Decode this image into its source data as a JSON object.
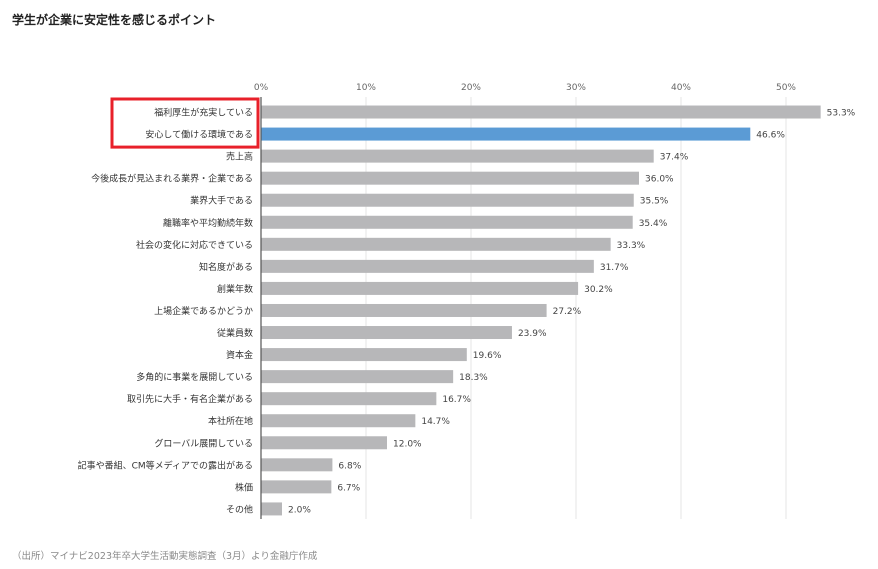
{
  "title": "学生が企業に安定性を感じるポイント",
  "source": "（出所）マイナビ2023年卒大学生活動実態調査（3月）より金融庁作成",
  "colors": {
    "bar": "#b7b7b9",
    "highlight_bar": "#5b9bd5",
    "highlight_box": "#e8202a",
    "grid": "#e6e6e6",
    "axis": "#555555"
  },
  "chart_data": {
    "type": "bar",
    "orientation": "horizontal",
    "categories": [
      "福利厚生が充実している",
      "安心して働ける環境である",
      "売上高",
      "今後成長が見込まれる業界・企業である",
      "業界大手である",
      "離職率や平均勤続年数",
      "社会の変化に対応できている",
      "知名度がある",
      "創業年数",
      "上場企業であるかどうか",
      "従業員数",
      "資本金",
      "多角的に事業を展開している",
      "取引先に大手・有名企業がある",
      "本社所在地",
      "グローバル展開している",
      "記事や番組、CM等メディアでの露出がある",
      "株価",
      "その他"
    ],
    "values": [
      53.3,
      46.6,
      37.4,
      36.0,
      35.5,
      35.4,
      33.3,
      31.7,
      30.2,
      27.2,
      23.9,
      19.6,
      18.3,
      16.7,
      14.7,
      12.0,
      6.8,
      6.7,
      2.0
    ],
    "value_labels": [
      "53.3%",
      "46.6%",
      "37.4%",
      "36.0%",
      "35.5%",
      "35.4%",
      "33.3%",
      "31.7%",
      "30.2%",
      "27.2%",
      "23.9%",
      "19.6%",
      "18.3%",
      "16.7%",
      "14.7%",
      "12.0%",
      "6.8%",
      "6.7%",
      "2.0%"
    ],
    "x_ticks": [
      "0%",
      "10%",
      "20%",
      "30%",
      "40%",
      "50%"
    ],
    "x_tick_values": [
      0,
      10,
      20,
      30,
      40,
      50
    ],
    "xlim": [
      0,
      55
    ],
    "axis_position": "top",
    "grid": true,
    "highlighted_bar_index": 1,
    "boxed_category_indices": [
      0,
      1
    ]
  }
}
